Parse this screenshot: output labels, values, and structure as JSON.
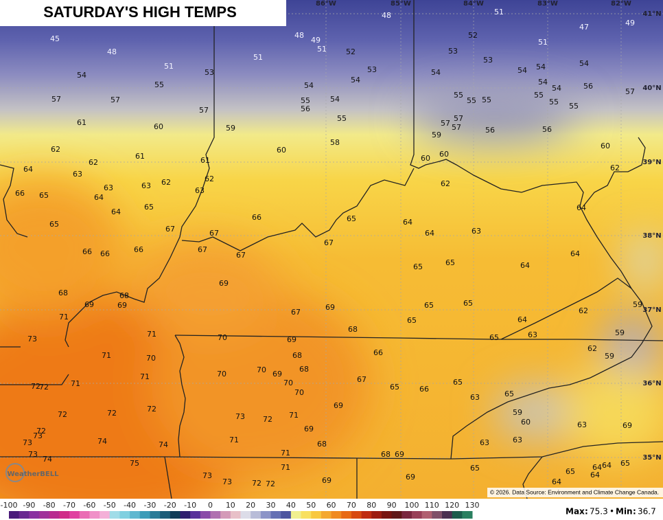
{
  "header": {
    "title": "SATURDAY'S HIGH TEMPS"
  },
  "grid_labels": {
    "longitudes": [
      "86°W",
      "85°W",
      "84°W",
      "83°W",
      "82°W"
    ],
    "latitudes": [
      "41°N",
      "40°N",
      "39°N",
      "38°N",
      "37°N",
      "36°N",
      "35°N"
    ]
  },
  "temperatures": [
    45,
    48,
    51,
    54,
    55,
    53,
    51,
    48,
    49,
    51,
    52,
    48,
    51,
    52,
    47,
    49,
    51,
    53,
    53,
    53,
    54,
    54,
    54,
    54,
    54,
    54,
    54,
    54,
    56,
    57,
    55,
    56,
    54,
    55,
    55,
    55,
    55,
    55,
    55,
    55,
    57,
    57,
    57,
    61,
    60,
    59,
    57,
    57,
    57,
    56,
    56,
    59,
    58,
    60,
    60,
    62,
    61,
    61,
    60,
    60,
    62,
    64,
    62,
    63,
    62,
    62,
    63,
    63,
    63,
    62,
    66,
    65,
    64,
    65,
    64,
    64,
    66,
    65,
    64,
    64,
    63,
    65,
    67,
    67,
    67,
    67,
    67,
    66,
    66,
    66,
    65,
    65,
    64,
    64,
    69,
    68,
    68,
    69,
    69,
    69,
    67,
    65,
    65,
    59,
    62,
    71,
    64,
    65,
    68,
    71,
    70,
    69,
    63,
    65,
    59,
    73,
    71,
    70,
    68,
    66,
    62,
    59,
    68,
    70,
    69,
    70,
    71,
    72,
    72,
    71,
    70,
    67,
    65,
    66,
    65,
    70,
    63,
    65,
    69,
    72,
    72,
    72,
    73,
    72,
    71,
    59,
    60,
    63,
    69,
    72,
    73,
    69,
    73,
    74,
    74,
    71,
    68,
    63,
    63,
    73,
    74,
    71,
    68,
    69,
    75,
    65,
    64,
    64,
    64,
    65,
    65,
    71,
    73,
    73,
    72,
    72,
    69,
    69,
    64
  ],
  "colorbar": {
    "ticks": [
      -100,
      -90,
      -80,
      -70,
      -60,
      -50,
      -40,
      -30,
      -20,
      -10,
      0,
      10,
      20,
      30,
      40,
      50,
      60,
      70,
      80,
      90,
      100,
      110,
      120,
      130
    ]
  },
  "stats": {
    "max_label": "Max",
    "max": 75.3,
    "separator": "•",
    "min_label": "Min",
    "min": 36.7
  },
  "credit": "© 2026. Data Source: Environment and Climate Change Canada.",
  "logo": "WeatherBELL"
}
